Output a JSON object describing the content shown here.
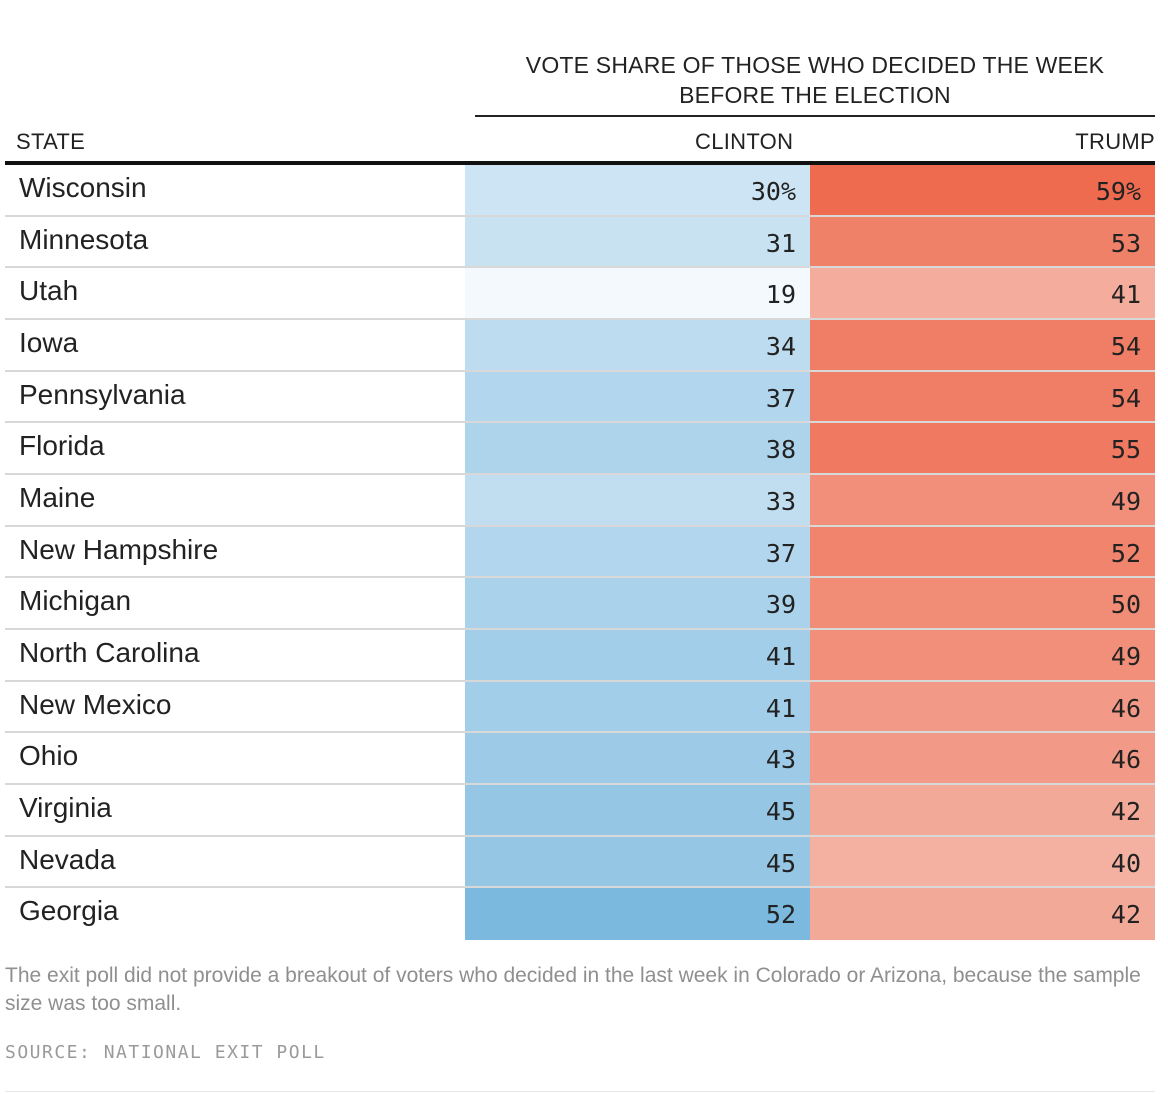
{
  "table": {
    "group_header": "VOTE SHARE OF THOSE WHO DECIDED THE WEEK BEFORE THE ELECTION",
    "headers": {
      "state": "STATE",
      "clinton": "CLINTON",
      "trump": "TRUMP"
    }
  },
  "colors": {
    "clinton_low": "#f4f9fd",
    "clinton_high": "#7bb9df",
    "trump_low": "#f4b0a0",
    "trump_high": "#ee6b50"
  },
  "chart_data": {
    "type": "table",
    "columns": [
      "STATE",
      "CLINTON",
      "TRUMP"
    ],
    "rows": [
      {
        "state": "Wisconsin",
        "clinton": 30,
        "trump": 59,
        "clinton_label": "30%",
        "trump_label": "59%"
      },
      {
        "state": "Minnesota",
        "clinton": 31,
        "trump": 53,
        "clinton_label": "31",
        "trump_label": "53"
      },
      {
        "state": "Utah",
        "clinton": 19,
        "trump": 41,
        "clinton_label": "19",
        "trump_label": "41"
      },
      {
        "state": "Iowa",
        "clinton": 34,
        "trump": 54,
        "clinton_label": "34",
        "trump_label": "54"
      },
      {
        "state": "Pennsylvania",
        "clinton": 37,
        "trump": 54,
        "clinton_label": "37",
        "trump_label": "54"
      },
      {
        "state": "Florida",
        "clinton": 38,
        "trump": 55,
        "clinton_label": "38",
        "trump_label": "55"
      },
      {
        "state": "Maine",
        "clinton": 33,
        "trump": 49,
        "clinton_label": "33",
        "trump_label": "49"
      },
      {
        "state": "New Hampshire",
        "clinton": 37,
        "trump": 52,
        "clinton_label": "37",
        "trump_label": "52"
      },
      {
        "state": "Michigan",
        "clinton": 39,
        "trump": 50,
        "clinton_label": "39",
        "trump_label": "50"
      },
      {
        "state": "North Carolina",
        "clinton": 41,
        "trump": 49,
        "clinton_label": "41",
        "trump_label": "49"
      },
      {
        "state": "New Mexico",
        "clinton": 41,
        "trump": 46,
        "clinton_label": "41",
        "trump_label": "46"
      },
      {
        "state": "Ohio",
        "clinton": 43,
        "trump": 46,
        "clinton_label": "43",
        "trump_label": "46"
      },
      {
        "state": "Virginia",
        "clinton": 45,
        "trump": 42,
        "clinton_label": "45",
        "trump_label": "42"
      },
      {
        "state": "Nevada",
        "clinton": 45,
        "trump": 40,
        "clinton_label": "45",
        "trump_label": "40"
      },
      {
        "state": "Georgia",
        "clinton": 52,
        "trump": 42,
        "clinton_label": "52",
        "trump_label": "42"
      }
    ]
  },
  "footnote": "The exit poll did not provide a breakout of voters who decided in the last week in Colorado or Arizona, because the sample size was too small.",
  "source": "SOURCE: NATIONAL EXIT POLL"
}
